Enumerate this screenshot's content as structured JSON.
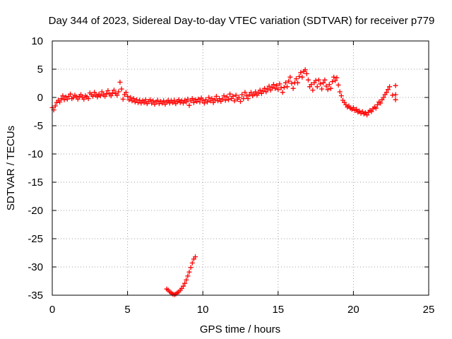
{
  "chart_data": {
    "type": "scatter",
    "title": "Day 344 of 2023, Sidereal Day-to-day VTEC variation (SDTVAR) for receiver p779",
    "xlabel": "GPS time / hours",
    "ylabel": "SDTVAR / TECUs",
    "xlim": [
      0,
      25
    ],
    "ylim": [
      -35,
      10
    ],
    "xticks": [
      0,
      5,
      10,
      15,
      20,
      25
    ],
    "yticks": [
      10,
      5,
      0,
      -5,
      -10,
      -15,
      -20,
      -25,
      -30,
      -35
    ],
    "xtick_labels": [
      "0",
      "5",
      "10",
      "15",
      "20",
      "25"
    ],
    "ytick_labels": [
      "10",
      "5",
      "0",
      "-5",
      "-10",
      "-15",
      "-20",
      "-25",
      "-30",
      "-35"
    ],
    "grid": true,
    "marker": "+",
    "color": "#ff0000",
    "series": [
      {
        "name": "SDTVAR",
        "points": [
          [
            0.0,
            -1.8
          ],
          [
            0.1,
            -2.2
          ],
          [
            0.2,
            -1.5
          ],
          [
            0.3,
            -0.9
          ],
          [
            0.4,
            -0.5
          ],
          [
            0.5,
            -0.8
          ],
          [
            0.6,
            -0.2
          ],
          [
            0.7,
            0.3
          ],
          [
            0.8,
            -0.4
          ],
          [
            0.9,
            0.1
          ],
          [
            1.0,
            -0.3
          ],
          [
            1.1,
            0.2
          ],
          [
            1.2,
            0.6
          ],
          [
            1.3,
            -0.2
          ],
          [
            1.4,
            0.0
          ],
          [
            1.5,
            0.4
          ],
          [
            1.6,
            0.1
          ],
          [
            1.7,
            -0.3
          ],
          [
            1.8,
            0.2
          ],
          [
            1.9,
            0.5
          ],
          [
            2.0,
            0.0
          ],
          [
            2.1,
            -0.3
          ],
          [
            2.2,
            0.3
          ],
          [
            2.3,
            0.1
          ],
          [
            2.4,
            -0.2
          ],
          [
            2.5,
            0.8
          ],
          [
            2.6,
            0.5
          ],
          [
            2.7,
            0.2
          ],
          [
            2.8,
            0.9
          ],
          [
            2.9,
            0.4
          ],
          [
            3.0,
            0.1
          ],
          [
            3.1,
            0.6
          ],
          [
            3.2,
            0.3
          ],
          [
            3.3,
            1.0
          ],
          [
            3.4,
            0.5
          ],
          [
            3.5,
            0.2
          ],
          [
            3.6,
            0.7
          ],
          [
            3.7,
            1.2
          ],
          [
            3.8,
            0.6
          ],
          [
            3.9,
            0.3
          ],
          [
            4.0,
            0.8
          ],
          [
            4.1,
            1.3
          ],
          [
            4.2,
            0.7
          ],
          [
            4.3,
            0.4
          ],
          [
            4.4,
            1.0
          ],
          [
            4.5,
            2.7
          ],
          [
            4.6,
            1.5
          ],
          [
            4.7,
            -0.3
          ],
          [
            4.8,
            0.5
          ],
          [
            4.9,
            0.9
          ],
          [
            5.0,
            0.2
          ],
          [
            5.1,
            -0.4
          ],
          [
            5.2,
            0.0
          ],
          [
            5.3,
            -0.6
          ],
          [
            5.4,
            -0.2
          ],
          [
            5.5,
            -0.8
          ],
          [
            5.6,
            -0.4
          ],
          [
            5.7,
            -0.9
          ],
          [
            5.8,
            -0.5
          ],
          [
            5.9,
            -1.0
          ],
          [
            6.0,
            -0.6
          ],
          [
            6.1,
            -0.9
          ],
          [
            6.2,
            -0.4
          ],
          [
            6.3,
            -1.1
          ],
          [
            6.4,
            -0.7
          ],
          [
            6.5,
            -0.4
          ],
          [
            6.6,
            -1.0
          ],
          [
            6.7,
            -0.6
          ],
          [
            6.8,
            -1.2
          ],
          [
            6.9,
            -0.8
          ],
          [
            7.0,
            -0.5
          ],
          [
            7.1,
            -1.1
          ],
          [
            7.2,
            -0.7
          ],
          [
            7.3,
            -1.0
          ],
          [
            7.4,
            -0.6
          ],
          [
            7.5,
            -1.2
          ],
          [
            7.6,
            -0.8
          ],
          [
            7.7,
            -0.5
          ],
          [
            7.8,
            -1.0
          ],
          [
            7.9,
            -0.6
          ],
          [
            8.0,
            -0.9
          ],
          [
            8.1,
            -0.5
          ],
          [
            8.2,
            -1.1
          ],
          [
            8.3,
            -0.7
          ],
          [
            8.4,
            -0.4
          ],
          [
            8.5,
            -0.9
          ],
          [
            8.6,
            -0.6
          ],
          [
            8.7,
            -1.0
          ],
          [
            8.8,
            -0.5
          ],
          [
            8.9,
            -0.8
          ],
          [
            9.0,
            -0.3
          ],
          [
            9.1,
            -1.4
          ],
          [
            9.2,
            -0.6
          ],
          [
            9.3,
            -0.2
          ],
          [
            9.4,
            -0.9
          ],
          [
            9.5,
            -0.4
          ],
          [
            9.6,
            -0.7
          ],
          [
            9.7,
            -0.3
          ],
          [
            9.8,
            -0.8
          ],
          [
            9.9,
            -0.1
          ],
          [
            10.0,
            -0.5
          ],
          [
            10.1,
            -1.0
          ],
          [
            10.2,
            -0.4
          ],
          [
            10.3,
            -0.8
          ],
          [
            10.4,
            0.0
          ],
          [
            10.5,
            -0.6
          ],
          [
            10.6,
            -0.2
          ],
          [
            10.7,
            -0.9
          ],
          [
            10.8,
            -0.4
          ],
          [
            10.9,
            0.2
          ],
          [
            11.0,
            -0.6
          ],
          [
            11.1,
            -0.2
          ],
          [
            11.2,
            -0.7
          ],
          [
            11.3,
            -0.3
          ],
          [
            11.4,
            0.3
          ],
          [
            11.5,
            -0.5
          ],
          [
            11.6,
            0.1
          ],
          [
            11.7,
            -0.4
          ],
          [
            11.8,
            0.6
          ],
          [
            11.9,
            -0.2
          ],
          [
            12.0,
            0.2
          ],
          [
            12.1,
            -0.6
          ],
          [
            12.2,
            0.4
          ],
          [
            12.3,
            -0.3
          ],
          [
            12.4,
            0.0
          ],
          [
            12.5,
            -0.7
          ],
          [
            12.6,
            0.5
          ],
          [
            12.7,
            -0.2
          ],
          [
            12.8,
            0.9
          ],
          [
            12.9,
            0.3
          ],
          [
            13.0,
            -0.2
          ],
          [
            13.1,
            0.5
          ],
          [
            13.2,
            0.9
          ],
          [
            13.3,
            0.3
          ],
          [
            13.4,
            0.6
          ],
          [
            13.5,
            1.0
          ],
          [
            13.6,
            0.4
          ],
          [
            13.7,
            0.8
          ],
          [
            13.8,
            1.3
          ],
          [
            13.9,
            0.7
          ],
          [
            14.0,
            1.1
          ],
          [
            14.1,
            1.6
          ],
          [
            14.2,
            1.0
          ],
          [
            14.3,
            1.5
          ],
          [
            14.4,
            2.0
          ],
          [
            14.5,
            1.3
          ],
          [
            14.6,
            1.8
          ],
          [
            14.7,
            2.3
          ],
          [
            14.8,
            1.6
          ],
          [
            14.9,
            2.1
          ],
          [
            15.0,
            1.4
          ],
          [
            15.1,
            2.4
          ],
          [
            15.2,
            1.7
          ],
          [
            15.3,
            0.9
          ],
          [
            15.4,
            1.8
          ],
          [
            15.5,
            2.6
          ],
          [
            15.6,
            1.9
          ],
          [
            15.7,
            2.9
          ],
          [
            15.8,
            3.6
          ],
          [
            15.9,
            2.5
          ],
          [
            16.0,
            1.6
          ],
          [
            16.1,
            2.6
          ],
          [
            16.2,
            3.3
          ],
          [
            16.3,
            2.6
          ],
          [
            16.4,
            3.7
          ],
          [
            16.5,
            4.4
          ],
          [
            16.6,
            3.6
          ],
          [
            16.7,
            4.6
          ],
          [
            16.8,
            4.9
          ],
          [
            16.9,
            4.2
          ],
          [
            17.0,
            3.1
          ],
          [
            17.1,
            1.9
          ],
          [
            17.2,
            2.3
          ],
          [
            17.3,
            1.3
          ],
          [
            17.4,
            2.6
          ],
          [
            17.5,
            3.0
          ],
          [
            17.6,
            1.9
          ],
          [
            17.7,
            3.1
          ],
          [
            17.8,
            2.4
          ],
          [
            17.9,
            1.5
          ],
          [
            18.0,
            2.6
          ],
          [
            18.1,
            3.1
          ],
          [
            18.2,
            2.0
          ],
          [
            18.3,
            1.4
          ],
          [
            18.4,
            2.3
          ],
          [
            18.5,
            1.6
          ],
          [
            18.6,
            2.8
          ],
          [
            18.7,
            3.6
          ],
          [
            18.8,
            3.0
          ],
          [
            18.9,
            3.5
          ],
          [
            19.0,
            2.2
          ],
          [
            19.1,
            1.0
          ],
          [
            19.2,
            0.3
          ],
          [
            19.3,
            -0.5
          ],
          [
            19.4,
            -0.9
          ],
          [
            19.5,
            -1.3
          ],
          [
            19.6,
            -1.7
          ],
          [
            19.7,
            -1.5
          ],
          [
            19.8,
            -1.9
          ],
          [
            19.9,
            -2.1
          ],
          [
            20.0,
            -1.8
          ],
          [
            20.1,
            -2.3
          ],
          [
            20.2,
            -2.1
          ],
          [
            20.3,
            -2.6
          ],
          [
            20.4,
            -2.4
          ],
          [
            20.5,
            -2.8
          ],
          [
            20.6,
            -2.5
          ],
          [
            20.7,
            -2.9
          ],
          [
            20.8,
            -2.7
          ],
          [
            20.9,
            -3.1
          ],
          [
            21.0,
            -2.6
          ],
          [
            21.1,
            -2.3
          ],
          [
            21.2,
            -2.5
          ],
          [
            21.3,
            -2.0
          ],
          [
            21.4,
            -1.7
          ],
          [
            21.5,
            -1.9
          ],
          [
            21.6,
            -1.3
          ],
          [
            21.7,
            -0.8
          ],
          [
            21.8,
            -1.0
          ],
          [
            21.9,
            -0.4
          ],
          [
            22.0,
            0.0
          ],
          [
            22.1,
            0.5
          ],
          [
            22.2,
            0.9
          ],
          [
            22.3,
            1.4
          ],
          [
            22.4,
            1.9
          ],
          [
            22.6,
            0.4
          ],
          [
            22.8,
            2.1
          ],
          [
            22.8,
            0.5
          ],
          [
            22.8,
            -0.4
          ],
          [
            7.6,
            -33.9
          ],
          [
            7.7,
            -34.1
          ],
          [
            7.8,
            -34.4
          ],
          [
            7.9,
            -34.6
          ],
          [
            8.0,
            -34.8
          ],
          [
            8.1,
            -34.9
          ],
          [
            8.2,
            -34.8
          ],
          [
            8.3,
            -34.6
          ],
          [
            8.4,
            -34.4
          ],
          [
            8.5,
            -34.1
          ],
          [
            8.6,
            -33.8
          ],
          [
            8.7,
            -33.4
          ],
          [
            8.8,
            -32.9
          ],
          [
            8.9,
            -32.3
          ],
          [
            9.0,
            -31.6
          ],
          [
            9.1,
            -30.9
          ],
          [
            9.2,
            -30.1
          ],
          [
            9.3,
            -29.3
          ],
          [
            9.4,
            -28.6
          ],
          [
            9.5,
            -28.2
          ]
        ]
      }
    ]
  }
}
